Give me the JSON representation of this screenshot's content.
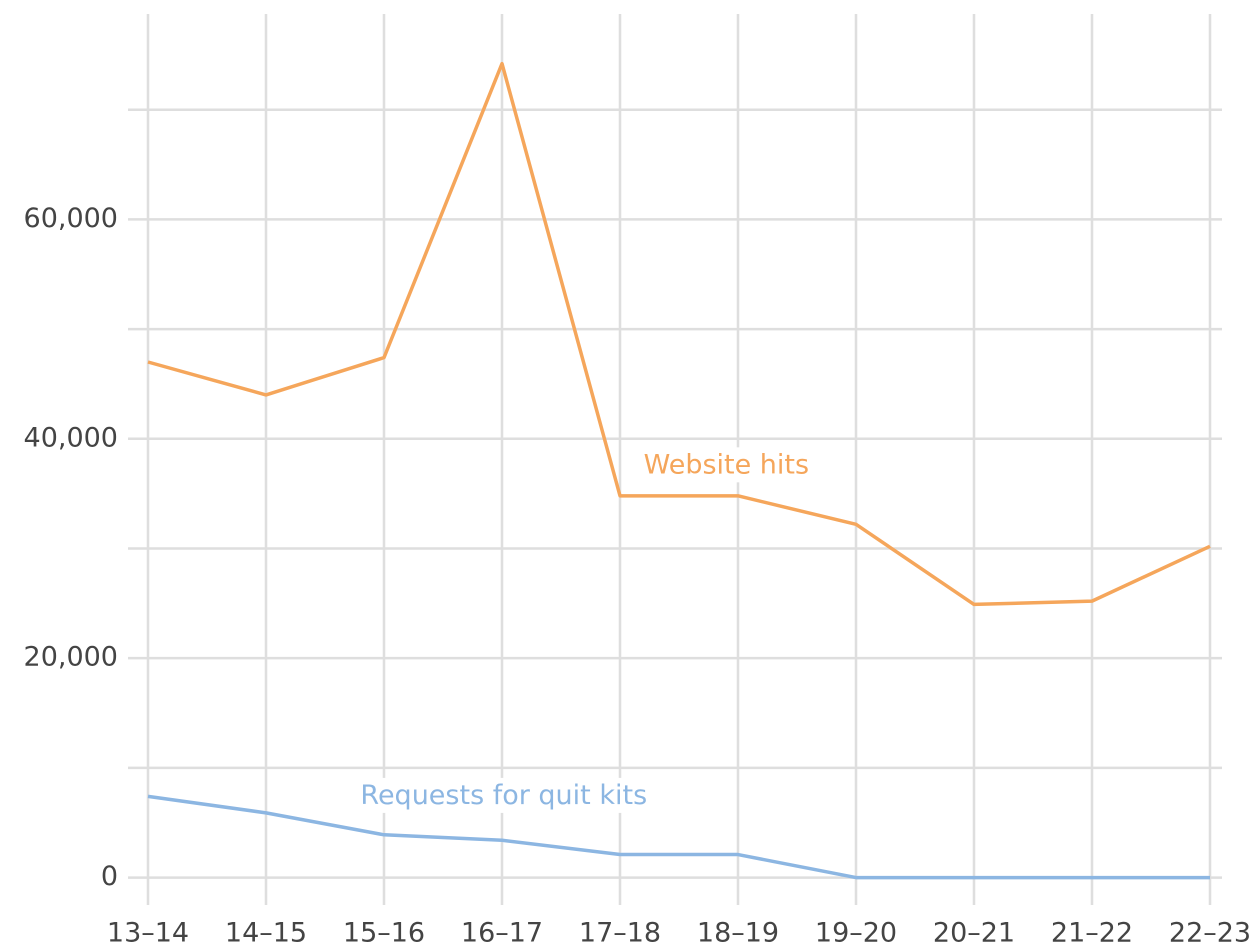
{
  "chart_data": {
    "type": "line",
    "categories": [
      "13–14",
      "14–15",
      "15–16",
      "16–17",
      "17–18",
      "18–19",
      "19–20",
      "20–21",
      "21–22",
      "22–23"
    ],
    "series": [
      {
        "name": "Website hits",
        "color": "#f5a65b",
        "values": [
          47000,
          44000,
          47400,
          74200,
          34800,
          34800,
          32200,
          24900,
          25200,
          30200
        ]
      },
      {
        "name": "Requests for quit kits",
        "color": "#8cb6e2",
        "values": [
          7400,
          5900,
          3900,
          3400,
          2100,
          2100,
          0,
          0,
          0,
          0
        ]
      }
    ],
    "ylim": [
      -2500,
      80000
    ],
    "yticks": [
      0,
      {
        "value": 20000,
        "label": "20,000"
      },
      {
        "value": 40000,
        "label": "40,000"
      },
      {
        "value": 60000,
        "label": "60,000"
      }
    ],
    "minor_yticks": [
      10000,
      30000,
      50000,
      70000
    ],
    "grid": true
  }
}
